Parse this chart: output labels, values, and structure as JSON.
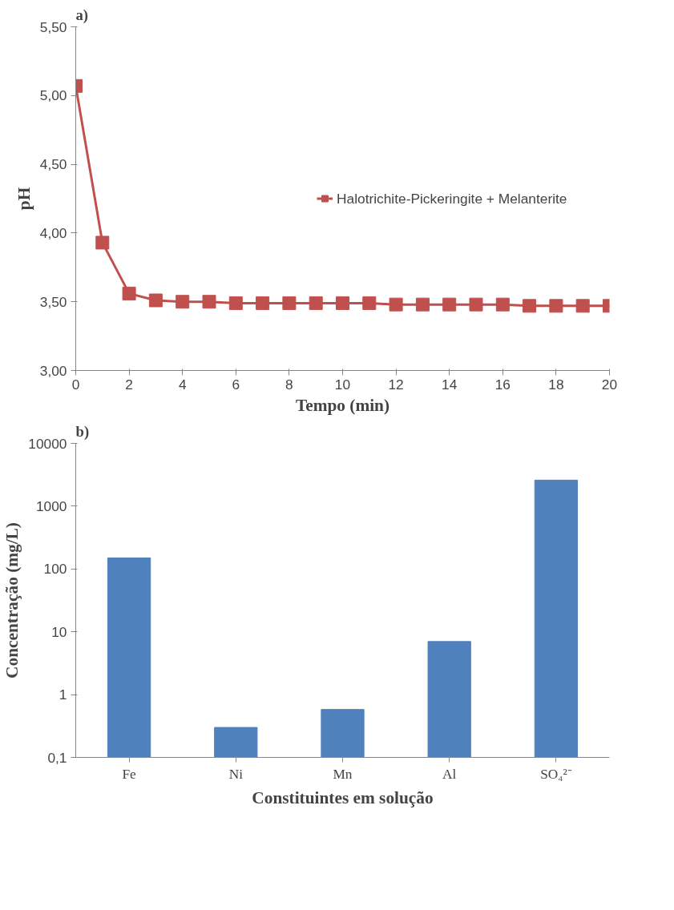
{
  "chart_data": [
    {
      "type": "line",
      "title": "a)",
      "xlabel": "Tempo (min)",
      "ylabel": "pH",
      "x": [
        0,
        1,
        2,
        3,
        4,
        5,
        6,
        7,
        8,
        9,
        10,
        11,
        12,
        13,
        14,
        15,
        16,
        17,
        18,
        19,
        20
      ],
      "series": [
        {
          "name": "Halotrichite-Pickeringite + Melanterite",
          "color": "#c0504d",
          "values": [
            5.07,
            3.93,
            3.56,
            3.51,
            3.5,
            3.5,
            3.49,
            3.49,
            3.49,
            3.49,
            3.49,
            3.49,
            3.48,
            3.48,
            3.48,
            3.48,
            3.48,
            3.47,
            3.47,
            3.47,
            3.47
          ]
        }
      ],
      "xlim": [
        0,
        20
      ],
      "xticks": [
        0,
        2,
        4,
        6,
        8,
        10,
        12,
        14,
        16,
        18,
        20
      ],
      "ylim": [
        3,
        5.5
      ],
      "yticks": [
        {
          "value": 3,
          "label": "3,00"
        },
        {
          "value": 3.5,
          "label": "3,50"
        },
        {
          "value": 4,
          "label": "4,00"
        },
        {
          "value": 4.5,
          "label": "4,50"
        },
        {
          "value": 5,
          "label": "5,00"
        },
        {
          "value": 5.5,
          "label": "5,50"
        }
      ],
      "marker": "square",
      "line_style": "solid",
      "legend": "right",
      "grid": false
    },
    {
      "type": "bar",
      "title": "b)",
      "xlabel": "Constituintes em solução",
      "ylabel": "Concentração (mg/L)",
      "categories": [
        "Fe",
        "Ni",
        "Mn",
        "Al",
        "SO₄²⁻"
      ],
      "values": [
        150,
        0.3,
        0.58,
        7,
        2600
      ],
      "color": "#4f81bd",
      "log": true,
      "ylim": [
        0.1,
        10000
      ],
      "yticks": [
        {
          "value": 0.1,
          "label": "0,1"
        },
        1,
        10,
        100,
        1000,
        10000
      ],
      "grid": false
    }
  ]
}
